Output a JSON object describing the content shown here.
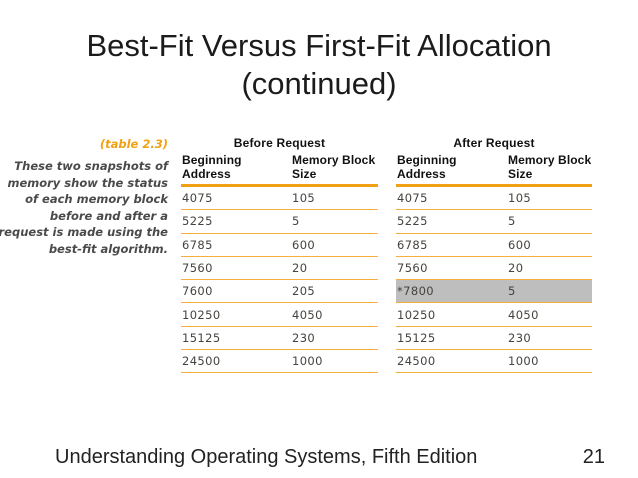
{
  "title": {
    "line1": "Best-Fit Versus First-Fit Allocation",
    "line2": "(continued)"
  },
  "caption": {
    "label": "(table 2.3)",
    "lines": [
      "These two snapshots of",
      "memory show the status",
      "of each memory block",
      "before and after a",
      "request is made using the",
      "best-fit algorithm."
    ]
  },
  "tables": [
    {
      "title": "Before Request",
      "columns": [
        "Beginning Address",
        "Memory Block Size"
      ],
      "rows": [
        [
          "4075",
          "105"
        ],
        [
          "5225",
          "5"
        ],
        [
          "6785",
          "600"
        ],
        [
          "7560",
          "20"
        ],
        [
          "7600",
          "205"
        ],
        [
          "10250",
          "4050"
        ],
        [
          "15125",
          "230"
        ],
        [
          "24500",
          "1000"
        ]
      ],
      "highlight_row": null
    },
    {
      "title": "After Request",
      "columns": [
        "Beginning Address",
        "Memory Block Size"
      ],
      "rows": [
        [
          "4075",
          "105"
        ],
        [
          "5225",
          "5"
        ],
        [
          "6785",
          "600"
        ],
        [
          "7560",
          "20"
        ],
        [
          "*7800",
          "5"
        ],
        [
          "10250",
          "4050"
        ],
        [
          "15125",
          "230"
        ],
        [
          "24500",
          "1000"
        ]
      ],
      "highlight_row": 4
    }
  ],
  "footer": {
    "left": "Understanding Operating Systems, Fifth Edition",
    "page_number": "21"
  },
  "colors": {
    "accent_orange": "#F2A014",
    "row_line_orange": "#F6AE3E",
    "highlight_gray": "#BEBEBE",
    "table_text": "#46433F",
    "caption_text": "#4A4A4A"
  }
}
